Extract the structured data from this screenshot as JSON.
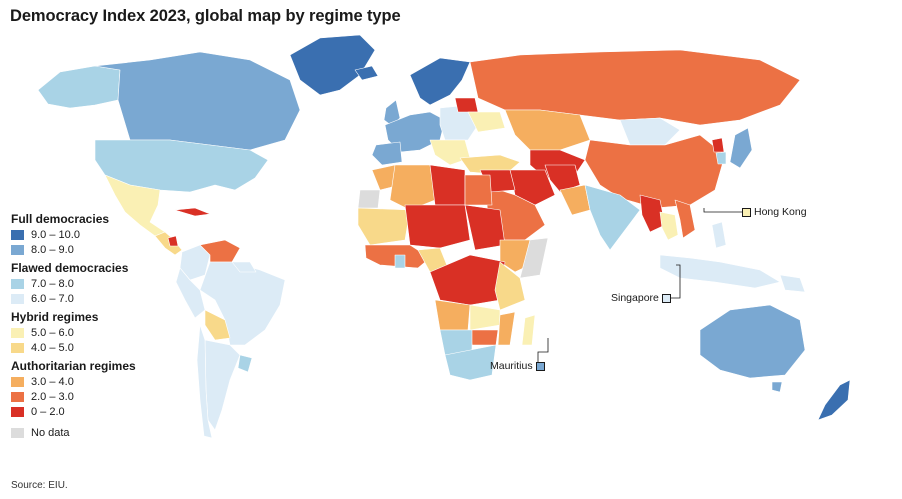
{
  "title": "Democracy Index 2023, global map by regime type",
  "legend": [
    {
      "title": "Full democracies",
      "items": [
        {
          "label": "9.0 – 10.0",
          "color": "#3a6fb0"
        },
        {
          "label": "8.0 – 9.0",
          "color": "#7aa8d2"
        }
      ]
    },
    {
      "title": "Flawed democracies",
      "items": [
        {
          "label": "7.0 – 8.0",
          "color": "#a9d3e6"
        },
        {
          "label": "6.0 – 7.0",
          "color": "#dcebf6"
        }
      ]
    },
    {
      "title": "Hybrid regimes",
      "items": [
        {
          "label": "5.0 – 6.0",
          "color": "#faf0b4"
        },
        {
          "label": "4.0 – 5.0",
          "color": "#f8d98a"
        }
      ]
    },
    {
      "title": "Authoritarian regimes",
      "items": [
        {
          "label": "3.0 – 4.0",
          "color": "#f5ae5f"
        },
        {
          "label": "2.0 – 3.0",
          "color": "#ec7144"
        },
        {
          "label": "0 – 2.0",
          "color": "#d93025"
        }
      ]
    }
  ],
  "no_data": {
    "label": "No data",
    "color": "#dcdcdc"
  },
  "callouts": {
    "hong_kong": {
      "label": "Hong Kong",
      "color": "#faf0b4"
    },
    "singapore": {
      "label": "Singapore",
      "color": "#dcebf6"
    },
    "mauritius": {
      "label": "Mauritius",
      "color": "#7aa8d2"
    }
  },
  "source": "Source: EIU."
}
